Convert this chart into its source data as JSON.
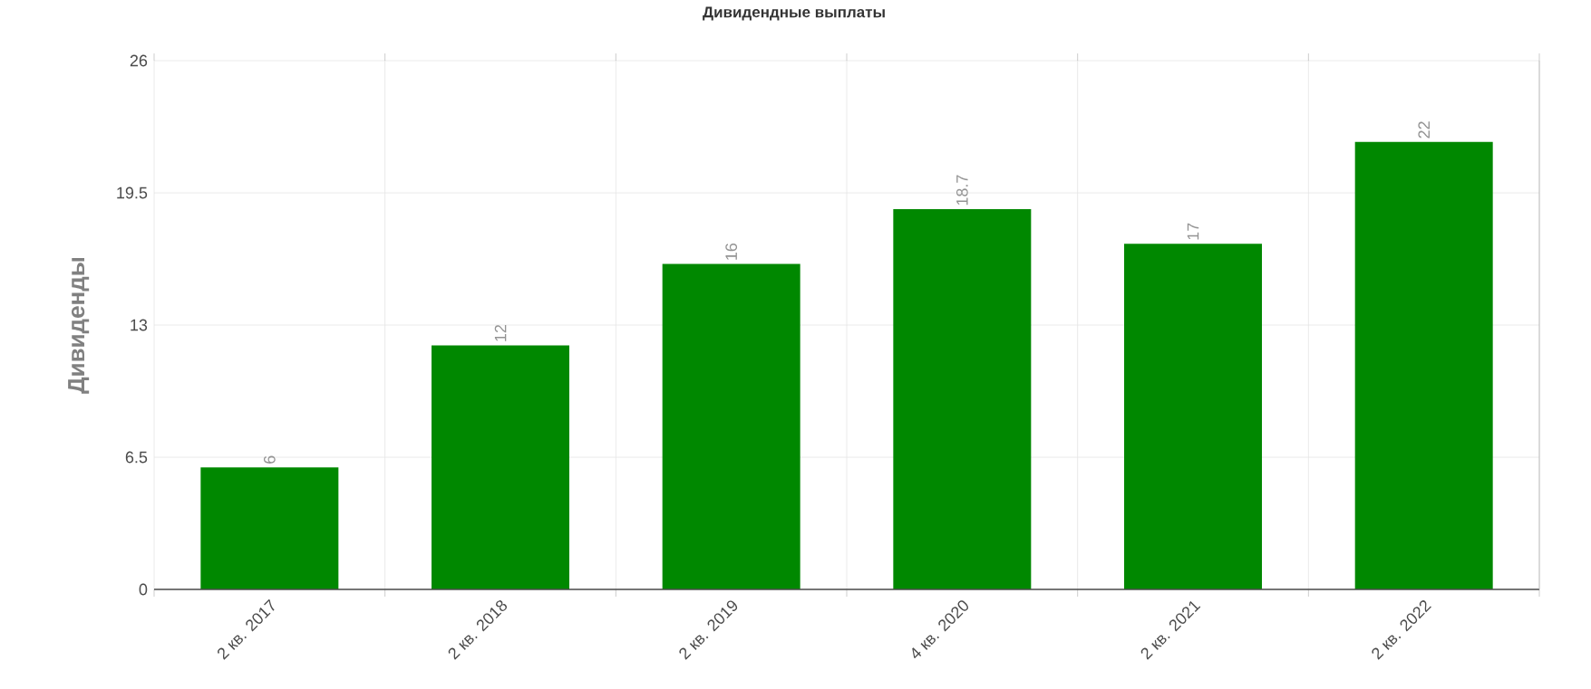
{
  "chart_data": {
    "type": "bar",
    "title": "Дивидендные выплаты",
    "ylabel": "Дивиденды",
    "categories": [
      "2 кв. 2017",
      "2 кв. 2018",
      "2 кв. 2019",
      "4 кв. 2020",
      "2 кв. 2021",
      "2 кв. 2022"
    ],
    "values": [
      6,
      12,
      16,
      18.7,
      17,
      22
    ],
    "color": "#008800",
    "ylim": [
      0,
      26
    ],
    "yticks": [
      0,
      6.5,
      13,
      19.5,
      26
    ],
    "grid": true,
    "data_labels": true
  }
}
